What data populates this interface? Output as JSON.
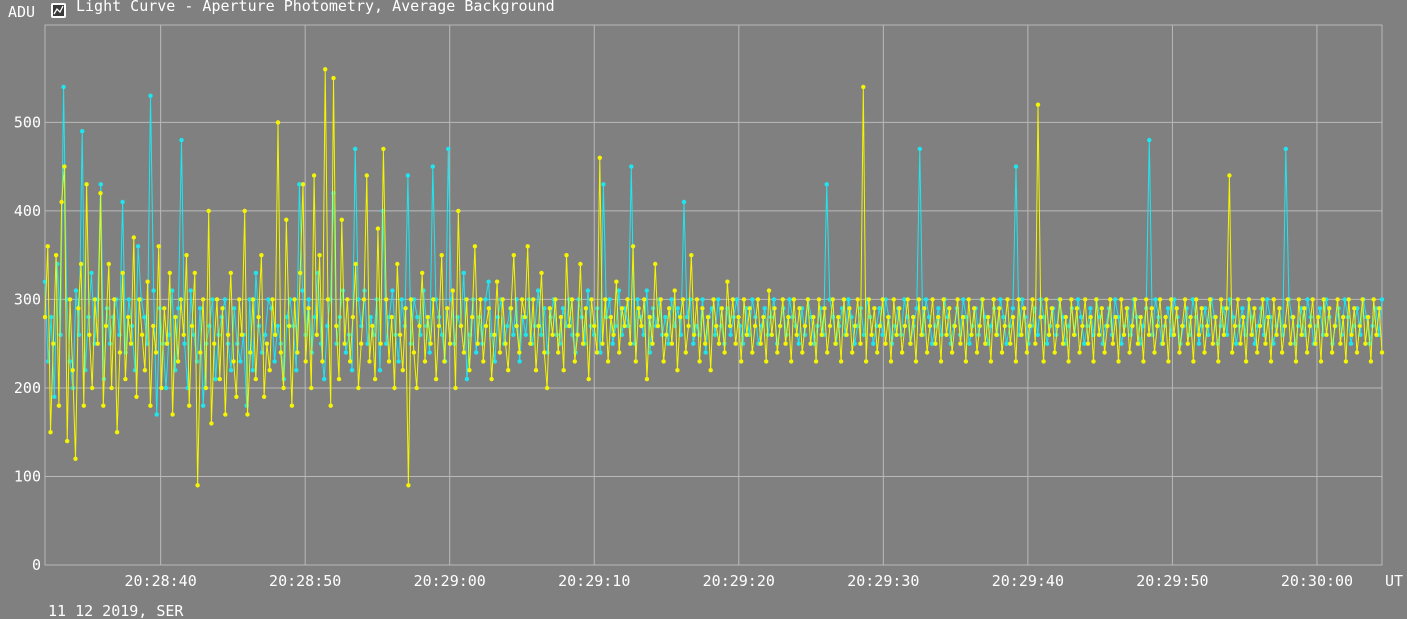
{
  "window": {
    "title": "Light Curve - Aperture Photometry, Average Background",
    "icon": "chart-window-icon",
    "footer": "11 12 2019, SER"
  },
  "colors": {
    "background": "#808080",
    "grid": "#b9b9b9",
    "series_cyan": "#1ee6f0",
    "series_yellow": "#f5f500",
    "text": "#ffffff"
  },
  "chart_data": {
    "type": "line",
    "title": "Light Curve - Aperture Photometry, Average Background",
    "ylabel": "ADU",
    "xlabel": "UT",
    "ylim": [
      0,
      610
    ],
    "xlim": [
      "20:28:32",
      "20:30:04.5"
    ],
    "y_ticks": [
      0,
      100,
      200,
      300,
      400,
      500
    ],
    "x_ticks": [
      "20:28:40",
      "20:28:50",
      "20:29:00",
      "20:29:10",
      "20:29:20",
      "20:29:30",
      "20:29:40",
      "20:29:50",
      "20:30:00"
    ],
    "grid": true,
    "legend": "none",
    "date_note": "11 12 2019, SER",
    "series": [
      {
        "color": "#1ee6f0",
        "x_start": "20:28:32",
        "x_end": "20:30:04.5",
        "values": [
          320,
          230,
          280,
          190,
          340,
          260,
          540,
          300,
          230,
          200,
          310,
          260,
          490,
          220,
          280,
          330,
          250,
          300,
          430,
          210,
          290,
          250,
          280,
          300,
          260,
          410,
          240,
          300,
          270,
          220,
          360,
          300,
          280,
          250,
          530,
          310,
          170,
          290,
          250,
          200,
          260,
          310,
          220,
          290,
          480,
          250,
          200,
          310,
          260,
          230,
          290,
          180,
          250,
          270,
          300,
          210,
          260,
          280,
          300,
          250,
          220,
          290,
          250,
          230,
          260,
          180,
          300,
          220,
          330,
          270,
          240,
          260,
          300,
          290,
          230,
          270,
          250,
          210,
          280,
          300,
          270,
          220,
          430,
          310,
          260,
          300,
          240,
          280,
          330,
          250,
          210,
          270,
          300,
          420,
          250,
          280,
          310,
          240,
          260,
          220,
          470,
          300,
          270,
          310,
          250,
          280,
          260,
          300,
          220,
          400,
          250,
          280,
          310,
          260,
          230,
          300,
          270,
          440,
          250,
          300,
          280,
          260,
          310,
          270,
          240,
          450,
          300,
          280,
          260,
          230,
          470,
          300,
          250,
          280,
          270,
          330,
          210,
          260,
          300,
          240,
          280,
          250,
          300,
          320,
          260,
          230,
          280,
          300,
          250,
          270,
          290,
          260,
          300,
          230,
          280,
          260,
          300,
          250,
          270,
          310,
          260,
          290,
          240,
          280,
          300,
          260,
          250,
          290,
          270,
          300,
          260,
          240,
          300,
          280,
          250,
          310,
          270,
          260,
          290,
          240,
          430,
          280,
          300,
          250,
          270,
          310,
          260,
          290,
          270,
          450,
          250,
          300,
          280,
          260,
          310,
          240,
          290,
          270,
          300,
          260,
          280,
          250,
          300,
          270,
          290,
          260,
          410,
          280,
          300,
          250,
          270,
          260,
          300,
          240,
          280,
          290,
          260,
          300,
          270,
          250,
          290,
          260,
          280,
          300,
          270,
          250,
          290,
          260,
          300,
          280,
          250,
          270,
          290,
          260,
          280,
          300,
          250,
          270,
          290,
          260,
          300,
          280,
          270,
          250,
          290,
          260,
          300,
          280,
          250,
          270,
          290,
          260,
          430,
          300,
          280,
          250,
          270,
          290,
          260,
          300,
          280,
          250,
          270,
          290,
          260,
          300,
          280,
          250,
          270,
          290,
          260,
          300,
          280,
          250,
          270,
          290,
          260,
          300,
          280,
          250,
          270,
          290,
          470,
          260,
          300,
          280,
          250,
          270,
          290,
          260,
          300,
          280,
          250,
          270,
          290,
          260,
          300,
          280,
          250,
          270,
          290,
          260,
          300,
          280,
          250,
          270,
          290,
          260,
          300,
          280,
          250,
          270,
          290,
          450,
          260,
          300,
          280,
          250,
          270,
          290,
          260,
          300,
          280,
          250,
          270,
          290,
          260,
          300,
          280,
          250,
          270,
          290,
          260,
          300,
          280,
          250,
          270,
          290,
          260,
          300,
          280,
          250,
          270,
          290,
          260,
          300,
          280,
          250,
          270,
          290,
          260,
          300,
          280,
          250,
          270,
          290,
          480,
          260,
          300,
          280,
          250,
          270,
          290,
          260,
          300,
          280,
          250,
          270,
          290,
          260,
          300,
          280,
          250,
          270,
          290,
          260,
          300,
          280,
          250,
          270,
          290,
          260,
          300,
          280,
          250,
          270,
          290,
          260,
          300,
          280,
          250,
          270,
          290,
          260,
          300,
          280,
          250,
          270,
          290,
          260,
          470,
          300,
          280,
          250,
          270,
          290,
          260,
          300,
          280,
          250,
          270,
          290,
          260,
          300,
          280,
          250,
          270,
          290,
          260,
          300,
          280,
          250,
          270,
          290,
          260,
          300,
          280,
          250,
          270,
          290,
          260,
          300
        ]
      },
      {
        "color": "#f5f500",
        "x_start": "20:28:32",
        "x_end": "20:30:04.5",
        "values": [
          280,
          360,
          150,
          250,
          350,
          180,
          410,
          450,
          140,
          300,
          220,
          120,
          290,
          340,
          180,
          430,
          260,
          200,
          300,
          250,
          420,
          180,
          270,
          340,
          200,
          300,
          150,
          240,
          330,
          210,
          280,
          250,
          370,
          190,
          300,
          260,
          220,
          320,
          180,
          270,
          240,
          360,
          200,
          290,
          250,
          330,
          170,
          280,
          230,
          300,
          260,
          350,
          180,
          270,
          330,
          90,
          240,
          300,
          200,
          400,
          160,
          250,
          300,
          210,
          290,
          170,
          260,
          330,
          230,
          190,
          300,
          260,
          400,
          170,
          240,
          300,
          210,
          280,
          350,
          190,
          250,
          220,
          300,
          260,
          500,
          240,
          200,
          390,
          270,
          180,
          300,
          240,
          330,
          430,
          230,
          290,
          200,
          440,
          260,
          350,
          230,
          560,
          300,
          180,
          550,
          270,
          210,
          390,
          250,
          300,
          230,
          280,
          340,
          200,
          250,
          300,
          440,
          230,
          270,
          210,
          380,
          250,
          470,
          300,
          230,
          280,
          200,
          340,
          260,
          220,
          290,
          90,
          300,
          240,
          200,
          270,
          330,
          230,
          280,
          250,
          300,
          210,
          270,
          350,
          230,
          290,
          250,
          310,
          200,
          400,
          270,
          240,
          300,
          220,
          280,
          360,
          250,
          300,
          230,
          270,
          290,
          210,
          260,
          320,
          240,
          300,
          250,
          220,
          290,
          350,
          270,
          240,
          300,
          280,
          360,
          250,
          300,
          220,
          270,
          330,
          240,
          200,
          290,
          260,
          300,
          240,
          280,
          220,
          350,
          270,
          300,
          230,
          260,
          340,
          250,
          290,
          210,
          300,
          270,
          240,
          460,
          250,
          300,
          230,
          280,
          260,
          320,
          240,
          290,
          270,
          300,
          250,
          360,
          230,
          290,
          270,
          300,
          210,
          280,
          250,
          340,
          270,
          300,
          230,
          260,
          290,
          250,
          310,
          220,
          280,
          300,
          240,
          270,
          350,
          260,
          300,
          230,
          290,
          250,
          280,
          220,
          300,
          270,
          250,
          290,
          240,
          320,
          270,
          300,
          250,
          280,
          230,
          300,
          260,
          290,
          240,
          270,
          300,
          250,
          280,
          230,
          310,
          260,
          290,
          240,
          270,
          300,
          250,
          280,
          230,
          300,
          260,
          290,
          240,
          270,
          300,
          250,
          280,
          230,
          300,
          260,
          290,
          240,
          270,
          300,
          250,
          280,
          230,
          300,
          260,
          290,
          240,
          270,
          300,
          250,
          540,
          230,
          300,
          260,
          290,
          240,
          270,
          300,
          250,
          280,
          230,
          300,
          260,
          290,
          240,
          270,
          300,
          250,
          280,
          230,
          300,
          260,
          290,
          240,
          270,
          300,
          250,
          280,
          230,
          300,
          260,
          290,
          240,
          270,
          300,
          250,
          280,
          230,
          300,
          260,
          290,
          240,
          270,
          300,
          250,
          280,
          230,
          300,
          260,
          290,
          240,
          270,
          300,
          250,
          280,
          230,
          300,
          260,
          290,
          240,
          270,
          300,
          250,
          520,
          280,
          230,
          300,
          260,
          290,
          240,
          270,
          300,
          250,
          280,
          230,
          300,
          260,
          290,
          240,
          270,
          300,
          250,
          280,
          230,
          300,
          260,
          290,
          240,
          270,
          300,
          250,
          280,
          230,
          300,
          260,
          290,
          240,
          270,
          300,
          250,
          280,
          230,
          300,
          260,
          290,
          240,
          270,
          300,
          250,
          280,
          230,
          300,
          260,
          290,
          240,
          270,
          300,
          250,
          280,
          230,
          300,
          260,
          290,
          240,
          270,
          300,
          250,
          280,
          230,
          300,
          260,
          290,
          440,
          240,
          270,
          300,
          250,
          280,
          230,
          300,
          260,
          290,
          240,
          270,
          300,
          250,
          280,
          230,
          300,
          260,
          290,
          240,
          270,
          300,
          250,
          280,
          230,
          300,
          260,
          290,
          240,
          270,
          300,
          250,
          280,
          230,
          300,
          260,
          290,
          240,
          270,
          300,
          250,
          280,
          230,
          300,
          260,
          290,
          240,
          270,
          300,
          250,
          280,
          230,
          300,
          260,
          290,
          240
        ]
      }
    ]
  }
}
